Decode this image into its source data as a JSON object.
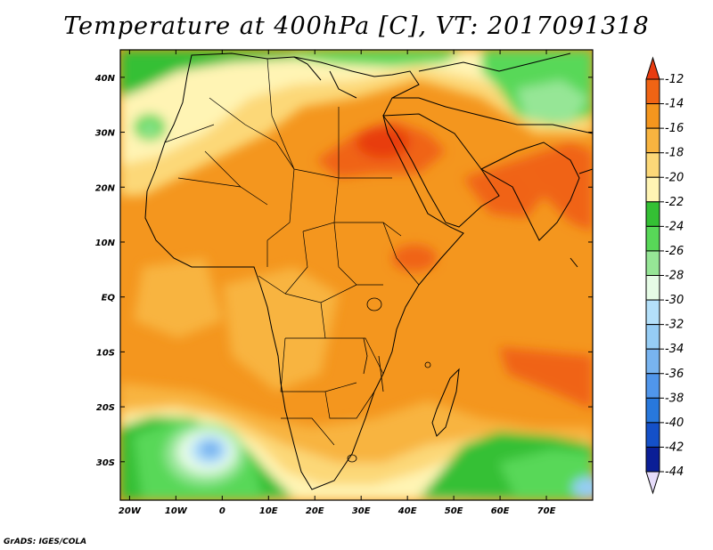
{
  "title": "Temperature at 400hPa [C], VT: 2017091318",
  "credit": "GrADS: IGES/COLA",
  "map": {
    "lon_range": [
      -22,
      80
    ],
    "lat_range": [
      -37,
      45
    ],
    "lon_ticks": [
      {
        "value": -20,
        "label": "20W"
      },
      {
        "value": -10,
        "label": "10W"
      },
      {
        "value": 0,
        "label": "0"
      },
      {
        "value": 10,
        "label": "10E"
      },
      {
        "value": 20,
        "label": "20E"
      },
      {
        "value": 30,
        "label": "30E"
      },
      {
        "value": 40,
        "label": "40E"
      },
      {
        "value": 50,
        "label": "50E"
      },
      {
        "value": 60,
        "label": "60E"
      },
      {
        "value": 70,
        "label": "70E"
      }
    ],
    "lat_ticks": [
      {
        "value": 40,
        "label": "40N"
      },
      {
        "value": 30,
        "label": "30N"
      },
      {
        "value": 20,
        "label": "20N"
      },
      {
        "value": 10,
        "label": "10N"
      },
      {
        "value": 0,
        "label": "EQ"
      },
      {
        "value": -10,
        "label": "10S"
      },
      {
        "value": -20,
        "label": "20S"
      },
      {
        "value": -30,
        "label": "30S"
      }
    ]
  },
  "colorbar": {
    "levels": [
      -12,
      -14,
      -16,
      -18,
      -20,
      -22,
      -24,
      -26,
      -28,
      -30,
      -32,
      -34,
      -36,
      -38,
      -40,
      -42,
      -44
    ],
    "colors": [
      "#e83c10",
      "#f06414",
      "#f4961e",
      "#f8b440",
      "#fcd878",
      "#fff4b4",
      "#34c034",
      "#58d858",
      "#96e696",
      "#e6fce6",
      "#b4e0fa",
      "#96cdf5",
      "#78b4f0",
      "#5096eb",
      "#2878dc",
      "#1450c8",
      "#0a1e96",
      "#e6dcfa"
    ]
  }
}
